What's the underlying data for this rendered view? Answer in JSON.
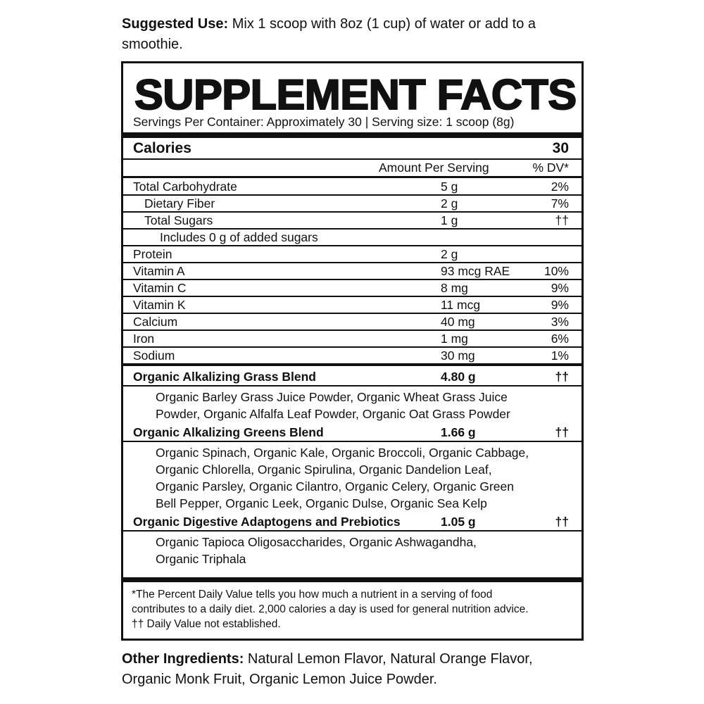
{
  "suggested_use": {
    "label": "Suggested Use:",
    "text": " Mix 1 scoop with 8oz (1 cup) of water or add to a smoothie."
  },
  "panel": {
    "title": "SUPPLEMENT FACTS",
    "servings": "Servings Per Container:  Approximately 30 | Serving size: 1 scoop (8g)",
    "calories": {
      "label": "Calories",
      "value": "30"
    },
    "header": {
      "amount": "Amount Per Serving",
      "dv": "% DV*"
    },
    "nutrients": [
      {
        "label": "Total Carbohydrate",
        "amount": "5 g",
        "dv": "2%",
        "indent": 0
      },
      {
        "label": "Dietary Fiber",
        "amount": "2 g",
        "dv": "7%",
        "indent": 1
      },
      {
        "label": "Total Sugars",
        "amount": "1 g",
        "dv": "††",
        "indent": 1
      },
      {
        "label": "Includes 0 g of added sugars",
        "amount": "",
        "dv": "",
        "indent": 2
      },
      {
        "label": "Protein",
        "amount": "2 g",
        "dv": "",
        "indent": 0
      },
      {
        "label": "Vitamin A",
        "amount": "93 mcg RAE",
        "dv": "10%",
        "indent": 0
      },
      {
        "label": "Vitamin C",
        "amount": "8 mg",
        "dv": "9%",
        "indent": 0
      },
      {
        "label": "Vitamin K",
        "amount": "11 mcg",
        "dv": "9%",
        "indent": 0
      },
      {
        "label": "Calcium",
        "amount": "40 mg",
        "dv": "3%",
        "indent": 0
      },
      {
        "label": "Iron",
        "amount": "1 mg",
        "dv": "6%",
        "indent": 0
      },
      {
        "label": "Sodium",
        "amount": "30 mg",
        "dv": "1%",
        "indent": 0
      }
    ],
    "blends": [
      {
        "label": "Organic Alkalizing Grass Blend",
        "amount": "4.80 g",
        "dv": "††",
        "ingredients": [
          "Organic Barley Grass Juice Powder, Organic Wheat Grass Juice",
          "Powder, Organic Alfalfa Leaf Powder, Organic Oat Grass Powder"
        ]
      },
      {
        "label": "Organic Alkalizing Greens Blend",
        "amount": "1.66 g",
        "dv": "††",
        "ingredients": [
          "Organic Spinach, Organic Kale, Organic Broccoli, Organic Cabbage,",
          "Organic Chlorella, Organic Spirulina, Organic Dandelion Leaf,",
          "Organic Parsley, Organic Cilantro, Organic Celery, Organic Green",
          "Bell Pepper, Organic Leek, Organic Dulse, Organic Sea Kelp"
        ]
      },
      {
        "label": "Organic Digestive Adaptogens and Prebiotics",
        "amount": "1.05 g",
        "dv": "††",
        "ingredients": [
          "Organic Tapioca Oligosaccharides, Organic Ashwagandha,",
          "Organic Triphala"
        ]
      }
    ],
    "footnotes": [
      "*The Percent Daily Value tells you how much a nutrient in a serving of food",
      "contributes to a daily diet. 2,000 calories a day is used for general nutrition advice.",
      "†† Daily Value not established."
    ]
  },
  "other_ingredients": {
    "label": "Other Ingredients:",
    "text": " Natural Lemon Flavor, Natural Orange Flavor, Organic Monk Fruit, Organic Lemon Juice Powder."
  }
}
